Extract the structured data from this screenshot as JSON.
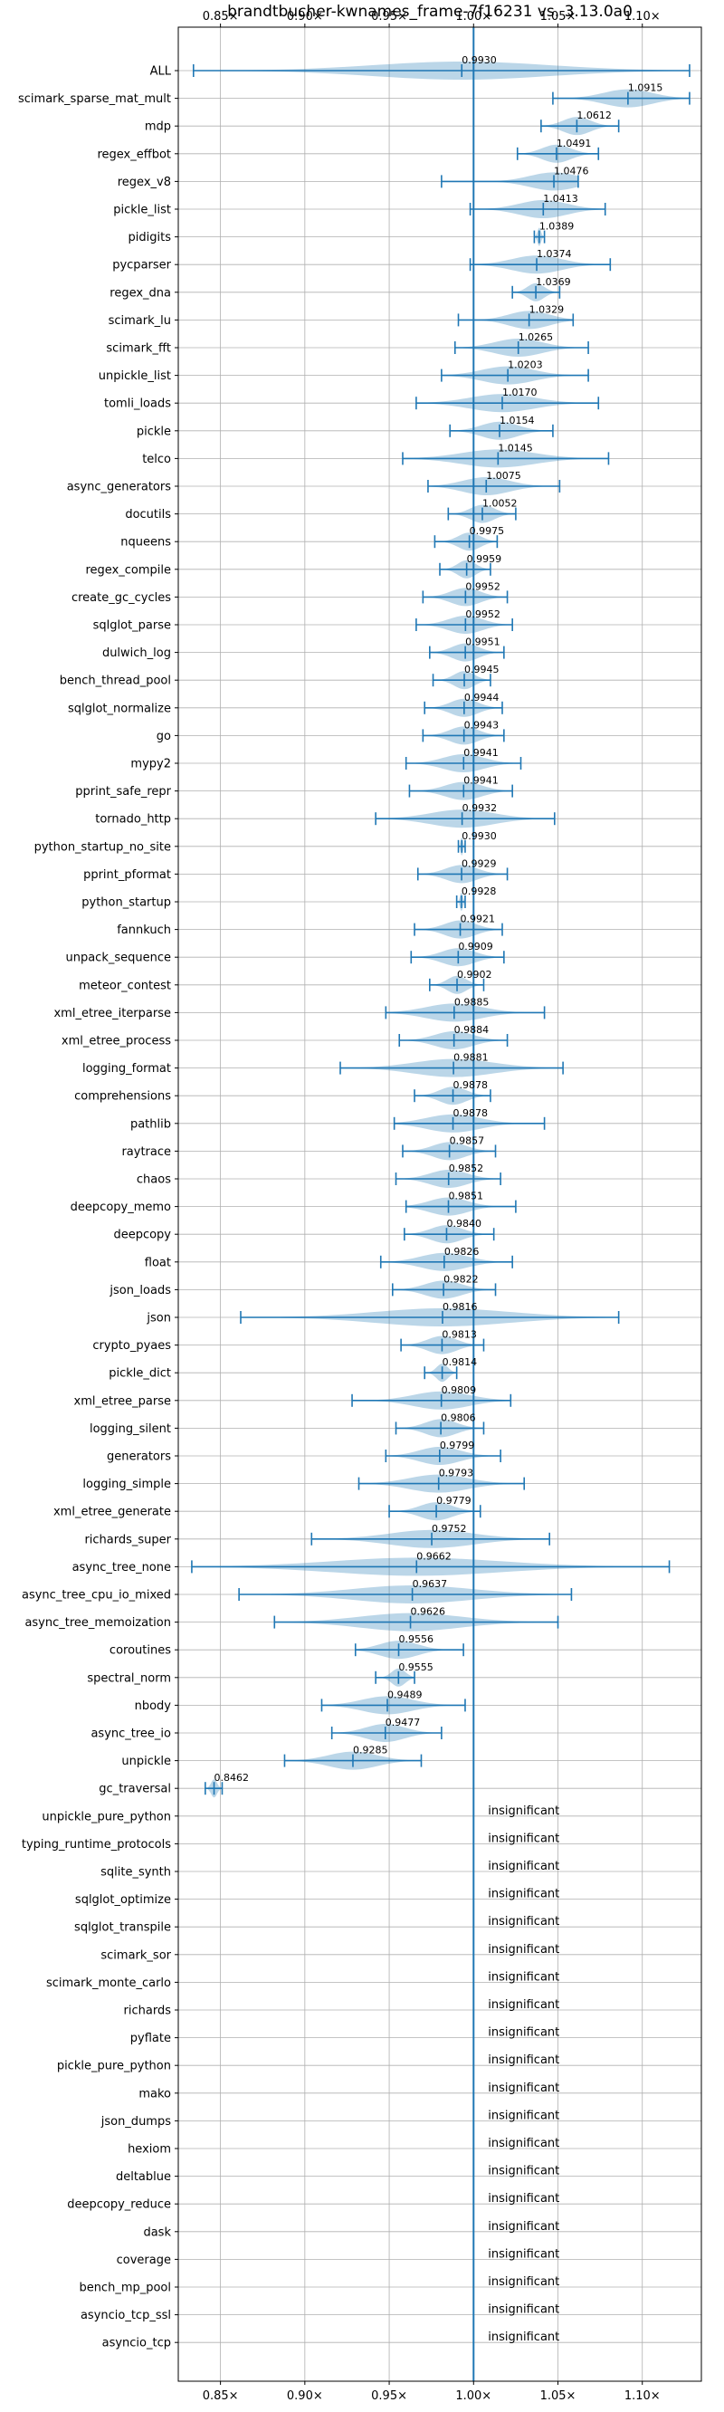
{
  "chart_data": {
    "type": "violin",
    "title": "brandtbucher-kwnames_frame-7f16231 vs. 3.13.0a0",
    "xlim": [
      0.825,
      1.135
    ],
    "xticks": [
      0.85,
      0.9,
      0.95,
      1.0,
      1.05,
      1.1
    ],
    "xtick_labels": [
      "0.85×",
      "0.90×",
      "0.95×",
      "1.00×",
      "1.05×",
      "1.10×"
    ],
    "reference_line": 1.0,
    "grid": true,
    "colors": {
      "accent": "#1f77b4",
      "violin": "#1f77b4",
      "grid": "#b0b0b0",
      "text": "#000000"
    },
    "insignificant_label": "insignificant",
    "benchmarks": [
      {
        "name": "ALL",
        "value": 0.993,
        "label": "0.9930",
        "min": 0.834,
        "max": 1.128,
        "width": 0.006
      },
      {
        "name": "scimark_sparse_mat_mult",
        "value": 1.0915,
        "label": "1.0915",
        "min": 1.047,
        "max": 1.128,
        "width": 0.036
      },
      {
        "name": "mdp",
        "value": 1.0612,
        "label": "1.0612",
        "min": 1.04,
        "max": 1.086,
        "width": 0.022
      },
      {
        "name": "regex_effbot",
        "value": 1.0491,
        "label": "1.0491",
        "min": 1.026,
        "max": 1.074,
        "width": 0.023
      },
      {
        "name": "regex_v8",
        "value": 1.0476,
        "label": "1.0476",
        "min": 0.981,
        "max": 1.062,
        "width": 0.01
      },
      {
        "name": "pickle_list",
        "value": 1.0413,
        "label": "1.0413",
        "min": 0.998,
        "max": 1.078,
        "width": 0.036
      },
      {
        "name": "pidigits",
        "value": 1.0389,
        "label": "1.0389",
        "min": 1.036,
        "max": 1.042,
        "width": 0.003
      },
      {
        "name": "pycparser",
        "value": 1.0374,
        "label": "1.0374",
        "min": 0.998,
        "max": 1.081,
        "width": 0.041
      },
      {
        "name": "regex_dna",
        "value": 1.0369,
        "label": "1.0369",
        "min": 1.023,
        "max": 1.051,
        "width": 0.016
      },
      {
        "name": "scimark_lu",
        "value": 1.0329,
        "label": "1.0329",
        "min": 0.991,
        "max": 1.059,
        "width": 0.03
      },
      {
        "name": "scimark_fft",
        "value": 1.0265,
        "label": "1.0265",
        "min": 0.989,
        "max": 1.068,
        "width": 0.04
      },
      {
        "name": "unpickle_list",
        "value": 1.0203,
        "label": "1.0203",
        "min": 0.981,
        "max": 1.068,
        "width": 0.035
      },
      {
        "name": "tomli_loads",
        "value": 1.017,
        "label": "1.0170",
        "min": 0.966,
        "max": 1.074,
        "width": 0.05
      },
      {
        "name": "pickle",
        "value": 1.0154,
        "label": "1.0154",
        "min": 0.986,
        "max": 1.047,
        "width": 0.028
      },
      {
        "name": "telco",
        "value": 1.0145,
        "label": "1.0145",
        "min": 0.958,
        "max": 1.08,
        "width": 0.055
      },
      {
        "name": "async_generators",
        "value": 1.0075,
        "label": "1.0075",
        "min": 0.973,
        "max": 1.051,
        "width": 0.034
      },
      {
        "name": "docutils",
        "value": 1.0052,
        "label": "1.0052",
        "min": 0.985,
        "max": 1.025,
        "width": 0.02
      },
      {
        "name": "nqueens",
        "value": 0.9975,
        "label": "0.9975",
        "min": 0.977,
        "max": 1.014,
        "width": 0.018
      },
      {
        "name": "regex_compile",
        "value": 0.9959,
        "label": "0.9959",
        "min": 0.98,
        "max": 1.01,
        "width": 0.015
      },
      {
        "name": "create_gc_cycles",
        "value": 0.9952,
        "label": "0.9952",
        "min": 0.97,
        "max": 1.02,
        "width": 0.025
      },
      {
        "name": "sqlglot_parse",
        "value": 0.9952,
        "label": "0.9952",
        "min": 0.966,
        "max": 1.023,
        "width": 0.027
      },
      {
        "name": "dulwich_log",
        "value": 0.9951,
        "label": "0.9951",
        "min": 0.974,
        "max": 1.018,
        "width": 0.02
      },
      {
        "name": "bench_thread_pool",
        "value": 0.9945,
        "label": "0.9945",
        "min": 0.976,
        "max": 1.01,
        "width": 0.016
      },
      {
        "name": "sqlglot_normalize",
        "value": 0.9944,
        "label": "0.9944",
        "min": 0.971,
        "max": 1.017,
        "width": 0.022
      },
      {
        "name": "go",
        "value": 0.9943,
        "label": "0.9943",
        "min": 0.97,
        "max": 1.018,
        "width": 0.024
      },
      {
        "name": "mypy2",
        "value": 0.9941,
        "label": "0.9941",
        "min": 0.96,
        "max": 1.028,
        "width": 0.033
      },
      {
        "name": "pprint_safe_repr",
        "value": 0.9941,
        "label": "0.9941",
        "min": 0.962,
        "max": 1.023,
        "width": 0.03
      },
      {
        "name": "tornado_http",
        "value": 0.9932,
        "label": "0.9932",
        "min": 0.942,
        "max": 1.048,
        "width": 0.05
      },
      {
        "name": "python_startup_no_site",
        "value": 0.993,
        "label": "0.9930",
        "min": 0.991,
        "max": 0.995,
        "width": 0.002
      },
      {
        "name": "pprint_pformat",
        "value": 0.9929,
        "label": "0.9929",
        "min": 0.967,
        "max": 1.02,
        "width": 0.026
      },
      {
        "name": "python_startup",
        "value": 0.9928,
        "label": "0.9928",
        "min": 0.99,
        "max": 0.995,
        "width": 0.002
      },
      {
        "name": "fannkuch",
        "value": 0.9921,
        "label": "0.9921",
        "min": 0.965,
        "max": 1.017,
        "width": 0.025
      },
      {
        "name": "unpack_sequence",
        "value": 0.9909,
        "label": "0.9909",
        "min": 0.963,
        "max": 1.018,
        "width": 0.027
      },
      {
        "name": "meteor_contest",
        "value": 0.9902,
        "label": "0.9902",
        "min": 0.974,
        "max": 1.006,
        "width": 0.015
      },
      {
        "name": "xml_etree_iterparse",
        "value": 0.9885,
        "label": "0.9885",
        "min": 0.948,
        "max": 1.042,
        "width": 0.045
      },
      {
        "name": "xml_etree_process",
        "value": 0.9884,
        "label": "0.9884",
        "min": 0.956,
        "max": 1.02,
        "width": 0.031
      },
      {
        "name": "logging_format",
        "value": 0.9881,
        "label": "0.9881",
        "min": 0.921,
        "max": 1.053,
        "width": 0.06
      },
      {
        "name": "comprehensions",
        "value": 0.9878,
        "label": "0.9878",
        "min": 0.965,
        "max": 1.01,
        "width": 0.022
      },
      {
        "name": "pathlib",
        "value": 0.9878,
        "label": "0.9878",
        "min": 0.953,
        "max": 1.042,
        "width": 0.04
      },
      {
        "name": "raytrace",
        "value": 0.9857,
        "label": "0.9857",
        "min": 0.958,
        "max": 1.013,
        "width": 0.026
      },
      {
        "name": "chaos",
        "value": 0.9852,
        "label": "0.9852",
        "min": 0.954,
        "max": 1.016,
        "width": 0.03
      },
      {
        "name": "deepcopy_memo",
        "value": 0.9851,
        "label": "0.9851",
        "min": 0.96,
        "max": 1.025,
        "width": 0.03
      },
      {
        "name": "deepcopy",
        "value": 0.984,
        "label": "0.9840",
        "min": 0.959,
        "max": 1.012,
        "width": 0.025
      },
      {
        "name": "float",
        "value": 0.9826,
        "label": "0.9826",
        "min": 0.945,
        "max": 1.023,
        "width": 0.038
      },
      {
        "name": "json_loads",
        "value": 0.9822,
        "label": "0.9822",
        "min": 0.952,
        "max": 1.013,
        "width": 0.03
      },
      {
        "name": "json",
        "value": 0.9816,
        "label": "0.9816",
        "min": 0.862,
        "max": 1.086,
        "width": 0.07
      },
      {
        "name": "crypto_pyaes",
        "value": 0.9813,
        "label": "0.9813",
        "min": 0.957,
        "max": 1.006,
        "width": 0.024
      },
      {
        "name": "pickle_dict",
        "value": 0.9814,
        "label": "0.9814",
        "min": 0.971,
        "max": 0.99,
        "width": 0.009
      },
      {
        "name": "xml_etree_parse",
        "value": 0.9809,
        "label": "0.9809",
        "min": 0.928,
        "max": 1.022,
        "width": 0.045
      },
      {
        "name": "logging_silent",
        "value": 0.9806,
        "label": "0.9806",
        "min": 0.954,
        "max": 1.006,
        "width": 0.025
      },
      {
        "name": "generators",
        "value": 0.9799,
        "label": "0.9799",
        "min": 0.948,
        "max": 1.016,
        "width": 0.032
      },
      {
        "name": "logging_simple",
        "value": 0.9793,
        "label": "0.9793",
        "min": 0.932,
        "max": 1.03,
        "width": 0.047
      },
      {
        "name": "xml_etree_generate",
        "value": 0.9779,
        "label": "0.9779",
        "min": 0.95,
        "max": 1.004,
        "width": 0.026
      },
      {
        "name": "richards_super",
        "value": 0.9752,
        "label": "0.9752",
        "min": 0.904,
        "max": 1.045,
        "width": 0.065
      },
      {
        "name": "async_tree_none",
        "value": 0.9662,
        "label": "0.9662",
        "min": 0.833,
        "max": 1.116,
        "width": 0.11
      },
      {
        "name": "async_tree_cpu_io_mixed",
        "value": 0.9637,
        "label": "0.9637",
        "min": 0.861,
        "max": 1.058,
        "width": 0.09
      },
      {
        "name": "async_tree_memoization",
        "value": 0.9626,
        "label": "0.9626",
        "min": 0.882,
        "max": 1.05,
        "width": 0.08
      },
      {
        "name": "coroutines",
        "value": 0.9556,
        "label": "0.9556",
        "min": 0.93,
        "max": 0.994,
        "width": 0.03
      },
      {
        "name": "spectral_norm",
        "value": 0.9555,
        "label": "0.9555",
        "min": 0.942,
        "max": 0.965,
        "width": 0.011
      },
      {
        "name": "nbody",
        "value": 0.9489,
        "label": "0.9489",
        "min": 0.91,
        "max": 0.995,
        "width": 0.04
      },
      {
        "name": "async_tree_io",
        "value": 0.9477,
        "label": "0.9477",
        "min": 0.916,
        "max": 0.981,
        "width": 0.03
      },
      {
        "name": "unpickle",
        "value": 0.9285,
        "label": "0.9285",
        "min": 0.888,
        "max": 0.969,
        "width": 0.04
      },
      {
        "name": "gc_traversal",
        "value": 0.8462,
        "label": "0.8462",
        "min": 0.841,
        "max": 0.851,
        "width": 0.005
      },
      {
        "name": "unpickle_pure_python",
        "insignificant": true
      },
      {
        "name": "typing_runtime_protocols",
        "insignificant": true
      },
      {
        "name": "sqlite_synth",
        "insignificant": true
      },
      {
        "name": "sqlglot_optimize",
        "insignificant": true
      },
      {
        "name": "sqlglot_transpile",
        "insignificant": true
      },
      {
        "name": "scimark_sor",
        "insignificant": true
      },
      {
        "name": "scimark_monte_carlo",
        "insignificant": true
      },
      {
        "name": "richards",
        "insignificant": true
      },
      {
        "name": "pyflate",
        "insignificant": true
      },
      {
        "name": "pickle_pure_python",
        "insignificant": true
      },
      {
        "name": "mako",
        "insignificant": true
      },
      {
        "name": "json_dumps",
        "insignificant": true
      },
      {
        "name": "hexiom",
        "insignificant": true
      },
      {
        "name": "deltablue",
        "insignificant": true
      },
      {
        "name": "deepcopy_reduce",
        "insignificant": true
      },
      {
        "name": "dask",
        "insignificant": true
      },
      {
        "name": "coverage",
        "insignificant": true
      },
      {
        "name": "bench_mp_pool",
        "insignificant": true
      },
      {
        "name": "asyncio_tcp_ssl",
        "insignificant": true
      },
      {
        "name": "asyncio_tcp",
        "insignificant": true
      }
    ]
  }
}
